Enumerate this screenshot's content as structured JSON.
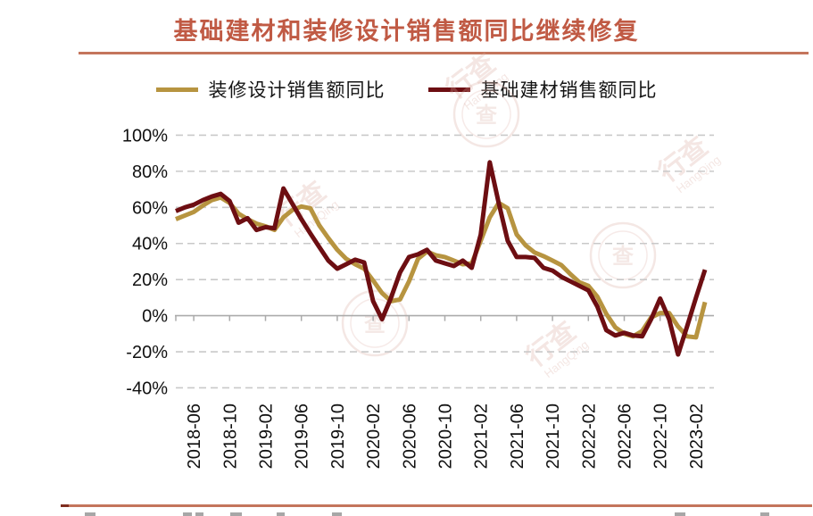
{
  "title": "基础建材和装修设计销售额同比继续修复",
  "accent_color": "#C05A44",
  "watermark": {
    "cn": "行查",
    "en": "HangQing"
  },
  "chart_data": {
    "type": "line",
    "title": "基础建材和装修设计销售额同比继续修复",
    "grid": "horizontal-dashed",
    "legend_position": "top",
    "ylim": [
      -40,
      100
    ],
    "y_ticks": [
      100,
      80,
      60,
      40,
      20,
      0,
      -20,
      -40
    ],
    "y_tick_labels": [
      "100%",
      "80%",
      "60%",
      "40%",
      "20%",
      "0%",
      "-20%",
      "-40%"
    ],
    "x_tick_labels": [
      "2018-06",
      "2018-10",
      "2019-02",
      "2019-06",
      "2019-10",
      "2020-02",
      "2020-06",
      "2020-10",
      "2021-02",
      "2021-06",
      "2021-10",
      "2022-02",
      "2022-06",
      "2022-10",
      "2023-02"
    ],
    "label_start_index": 2,
    "label_every": 4,
    "categories": [
      "2018-04",
      "2018-05",
      "2018-06",
      "2018-07",
      "2018-08",
      "2018-09",
      "2018-10",
      "2018-11",
      "2018-12",
      "2019-01",
      "2019-02",
      "2019-03",
      "2019-04",
      "2019-05",
      "2019-06",
      "2019-07",
      "2019-08",
      "2019-09",
      "2019-10",
      "2019-11",
      "2019-12",
      "2020-01",
      "2020-02",
      "2020-03",
      "2020-04",
      "2020-05",
      "2020-06",
      "2020-07",
      "2020-08",
      "2020-09",
      "2020-10",
      "2020-11",
      "2020-12",
      "2021-01",
      "2021-02",
      "2021-03",
      "2021-04",
      "2021-05",
      "2021-06",
      "2021-07",
      "2021-08",
      "2021-09",
      "2021-10",
      "2021-11",
      "2021-12",
      "2022-01",
      "2022-02",
      "2022-03",
      "2022-04",
      "2022-05",
      "2022-06",
      "2022-07",
      "2022-08",
      "2022-09",
      "2022-10",
      "2022-11",
      "2022-12",
      "2023-01",
      "2023-02",
      "2023-03",
      "2023-04"
    ],
    "series": [
      {
        "name": "装修设计销售额同比",
        "color": "#B79440",
        "values": [
          53.5,
          55.5,
          57.5,
          61,
          64,
          65.5,
          62.5,
          56.5,
          53.5,
          51,
          49.5,
          47.5,
          54.5,
          58.5,
          60.5,
          59.5,
          50,
          43,
          36.5,
          31.5,
          28.5,
          26,
          19.5,
          12.5,
          8,
          9,
          19,
          31.5,
          35.5,
          33.5,
          32.5,
          30.5,
          28.5,
          29,
          41.5,
          54.5,
          62.5,
          59.5,
          45,
          39,
          35,
          33,
          30.5,
          28,
          23,
          18.5,
          16.5,
          10.5,
          1,
          -6.5,
          -10,
          -11.5,
          -8.5,
          -1,
          1.5,
          1.5,
          -6,
          -11.5,
          -12,
          7.5,
          null
        ]
      },
      {
        "name": "基础建材销售额同比",
        "color": "#6D0E12",
        "values": [
          58,
          60,
          61.5,
          64,
          66,
          67.5,
          63.5,
          51.5,
          54,
          47.5,
          49,
          48.5,
          70.5,
          62,
          53.5,
          45.5,
          38,
          30.5,
          26,
          28.5,
          31,
          29.5,
          8,
          -2,
          10,
          24,
          32.5,
          34,
          36.5,
          30.5,
          29,
          27.5,
          30.5,
          26.5,
          45,
          85,
          62.5,
          41.5,
          32.5,
          32.5,
          32,
          26.5,
          25,
          21.5,
          19,
          16.5,
          14,
          5,
          -8,
          -11,
          -9.5,
          -11,
          -11.5,
          -2,
          9.5,
          -2,
          -21.5,
          -6,
          10,
          25.5,
          null
        ]
      }
    ]
  }
}
